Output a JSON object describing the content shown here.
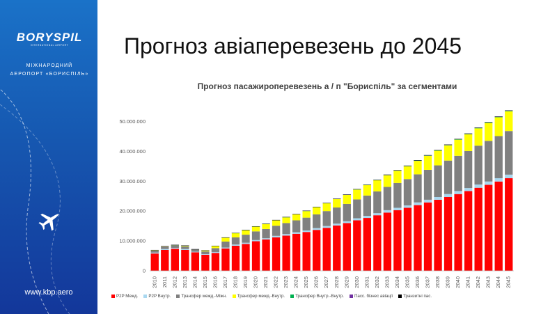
{
  "branding": {
    "logo_text": "BORYSPIL",
    "logo_subtext": "INTERNATIONAL AIRPORT",
    "airport_line1": "МІЖНАРОДНИЙ",
    "airport_line2": "АЕРОПОРТ «БОРИСПІЛЬ»",
    "website": "www.kbp.aero"
  },
  "slide": {
    "title": "Прогноз авіаперевезень до 2045"
  },
  "chart_data": {
    "type": "bar",
    "stacked": true,
    "title": "Прогноз пасажироперевезень а / п \"Бориспіль\" за сегментами",
    "xlabel": "",
    "ylabel": "",
    "ylim": [
      0,
      55000000
    ],
    "yticks": [
      "0",
      "10.000.000",
      "20.000.000",
      "30.000.000",
      "40.000.000",
      "50.000.000"
    ],
    "grid": false,
    "legend_position": "bottom",
    "categories": [
      "2010",
      "2011",
      "2012",
      "2013",
      "2014",
      "2015",
      "2016",
      "2017",
      "2018",
      "2019",
      "2020",
      "2021",
      "2022",
      "2023",
      "2024",
      "2025",
      "2026",
      "2027",
      "2028",
      "2029",
      "2030",
      "2031",
      "2032",
      "2033",
      "2034",
      "2035",
      "2036",
      "2037",
      "2038",
      "2039",
      "2040",
      "2041",
      "2042",
      "2043",
      "2044",
      "2045"
    ],
    "series": [
      {
        "name": "P2P Межд.",
        "color": "#ff0000",
        "values": [
          5800000,
          7000000,
          7400000,
          7000000,
          6200000,
          5400000,
          6000000,
          7500000,
          8400000,
          9000000,
          9900000,
          10500000,
          11200000,
          11800000,
          12400000,
          13000000,
          13700000,
          14400000,
          15200000,
          16000000,
          16900000,
          17700000,
          18600000,
          19500000,
          20300000,
          21100000,
          22000000,
          22900000,
          23800000,
          24700000,
          25700000,
          26700000,
          27800000,
          28800000,
          29900000,
          31000000
        ]
      },
      {
        "name": "P2P Внутр.",
        "color": "#a9d8f0",
        "values": [
          300000,
          300000,
          300000,
          300000,
          200000,
          200000,
          300000,
          300000,
          400000,
          400000,
          400000,
          400000,
          500000,
          500000,
          500000,
          500000,
          600000,
          600000,
          600000,
          600000,
          700000,
          700000,
          700000,
          800000,
          800000,
          800000,
          900000,
          900000,
          900000,
          1000000,
          1000000,
          1000000,
          1100000,
          1100000,
          1100000,
          1200000
        ]
      },
      {
        "name": "Трансфер межд.-Міжн.",
        "color": "#808080",
        "values": [
          700000,
          800000,
          800000,
          900000,
          700000,
          900000,
          1300000,
          2000000,
          2400000,
          2700000,
          2900000,
          3100000,
          3400000,
          3700000,
          4000000,
          4300000,
          4600000,
          5000000,
          5400000,
          5800000,
          6300000,
          6800000,
          7300000,
          7800000,
          8300000,
          8800000,
          9400000,
          10000000,
          10600000,
          11200000,
          11800000,
          12400000,
          13000000,
          13600000,
          14100000,
          14600000
        ]
      },
      {
        "name": "Трансфер межд.-Внутр.",
        "color": "#ffff00",
        "values": [
          100000,
          100000,
          100000,
          200000,
          100000,
          300000,
          700000,
          1300000,
          1400000,
          1500000,
          1600000,
          1700000,
          1800000,
          1900000,
          2000000,
          2200000,
          2400000,
          2600000,
          2800000,
          3000000,
          3300000,
          3500000,
          3700000,
          3900000,
          4100000,
          4300000,
          4500000,
          4700000,
          4900000,
          5100000,
          5400000,
          5600000,
          5800000,
          6000000,
          6300000,
          6600000
        ]
      },
      {
        "name": "Трансфер Внутр.-Внутр.",
        "color": "#00b050",
        "values": [
          50000,
          50000,
          50000,
          50000,
          30000,
          30000,
          50000,
          50000,
          50000,
          60000,
          60000,
          60000,
          70000,
          70000,
          70000,
          80000,
          80000,
          80000,
          90000,
          90000,
          100000,
          100000,
          110000,
          110000,
          120000,
          120000,
          130000,
          130000,
          140000,
          140000,
          150000,
          150000,
          160000,
          160000,
          170000,
          180000
        ]
      },
      {
        "name": "Пасс. бізнес авіації",
        "color": "#7030a0",
        "values": [
          30000,
          30000,
          30000,
          30000,
          20000,
          20000,
          30000,
          30000,
          30000,
          30000,
          30000,
          30000,
          40000,
          40000,
          40000,
          40000,
          40000,
          40000,
          50000,
          50000,
          50000,
          50000,
          50000,
          60000,
          60000,
          60000,
          60000,
          60000,
          70000,
          70000,
          70000,
          70000,
          70000,
          80000,
          80000,
          80000
        ]
      },
      {
        "name": "Транзитні пас.",
        "color": "#000000",
        "values": [
          20000,
          20000,
          20000,
          20000,
          20000,
          20000,
          20000,
          20000,
          20000,
          30000,
          30000,
          30000,
          30000,
          30000,
          30000,
          30000,
          30000,
          40000,
          40000,
          40000,
          40000,
          40000,
          40000,
          50000,
          50000,
          50000,
          50000,
          50000,
          50000,
          60000,
          60000,
          60000,
          60000,
          60000,
          70000,
          70000
        ]
      }
    ]
  }
}
